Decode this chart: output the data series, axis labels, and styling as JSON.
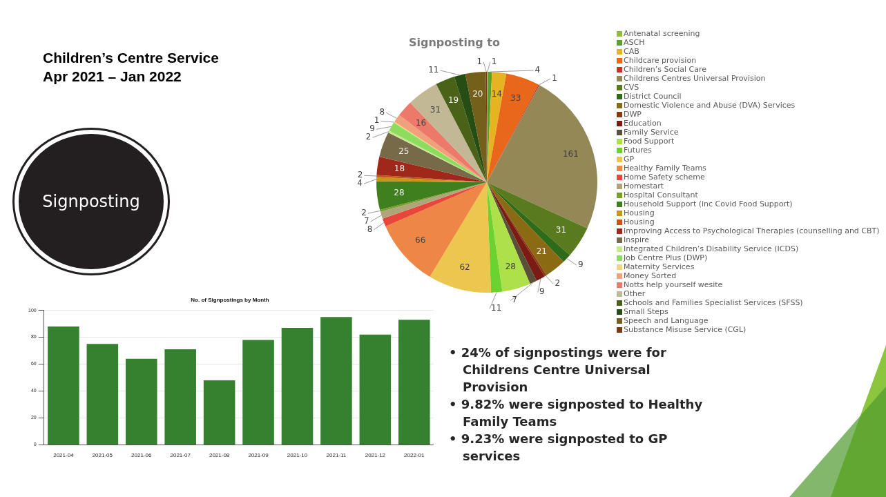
{
  "chart_data": [
    {
      "type": "other",
      "title": "Children’s Centre Service",
      "subtitle": "Apr 2021 – Jan 2022",
      "annotations": [
        "Signposting",
        "• 24% of signpostings were for Childrens Centre Universal Provision",
        "• 9.82% were signposted to Healthy Family Teams",
        "• 9.23% were signposted to GP services"
      ]
    },
    {
      "type": "pie",
      "title": "Signposting to",
      "legend": "right",
      "data_labels": true,
      "categories": [
        "Antenatal screening",
        "ASCH",
        "CAB",
        "Childcare provision",
        "Children’s Social Care",
        "Childrens Centres Universal Provision",
        "CVS",
        "District Council",
        "Domestic Violence and Abuse (DVA) Services",
        "DWP",
        "Education",
        "Family Service",
        "Food Support",
        "Futures",
        "GP",
        "Healthy Family Teams",
        "Home Safety scheme",
        "Homestart",
        "Hospital Consultant",
        "Household Support (inc Covid Food Support)",
        "Housing",
        "Housing",
        "Improving Access to Psychological Therapies (counselling and CBT)",
        "Inspire",
        "Integrated Children’s Disability Service (ICDS)",
        "Job Centre Plus (DWP)",
        "Maternity Services",
        "Money Sorted",
        "Notts help yourself wesite",
        "Other",
        "Schools and Families Specialist Services (SFSS)",
        "Small Steps",
        "Speech and Language",
        "Substance Misuse Service (CGL)"
      ],
      "values": [
        1,
        4,
        14,
        33,
        1,
        161,
        31,
        9,
        21,
        2,
        9,
        7,
        28,
        11,
        62,
        66,
        8,
        7,
        2,
        28,
        4,
        2,
        18,
        25,
        2,
        9,
        1,
        8,
        16,
        31,
        19,
        11,
        20,
        1
      ],
      "colors": [
        "#8fbf3a",
        "#5aa02c",
        "#e6b422",
        "#e8671a",
        "#c8321e",
        "#938856",
        "#5a7a1e",
        "#2d6b1a",
        "#8a6a12",
        "#8a3a10",
        "#7a1c12",
        "#5a5038",
        "#aee04a",
        "#6cd230",
        "#ecc64e",
        "#ee8746",
        "#e8463a",
        "#b0a57a",
        "#7a9e2a",
        "#3f7f1e",
        "#c8961a",
        "#c0561a",
        "#a0281a",
        "#766a48",
        "#c8e68a",
        "#8edc5e",
        "#f0d682",
        "#f0a07a",
        "#ec7a6a",
        "#c2b896",
        "#4a6218",
        "#264e14",
        "#74601a",
        "#7a3a18"
      ]
    },
    {
      "type": "bar",
      "title": "No. of Signpostings by Month",
      "categories": [
        "2021-04",
        "2021-05",
        "2021-06",
        "2021-07",
        "2021-08",
        "2021-09",
        "2021-10",
        "2021-11",
        "2021-12",
        "2022-01"
      ],
      "values": [
        88,
        75,
        64,
        71,
        48,
        78,
        87,
        95,
        82,
        93
      ],
      "color": "#358130",
      "ylim": [
        0,
        100
      ],
      "yticks": [
        0,
        20,
        40,
        60,
        80,
        100
      ],
      "grid": "y"
    }
  ]
}
